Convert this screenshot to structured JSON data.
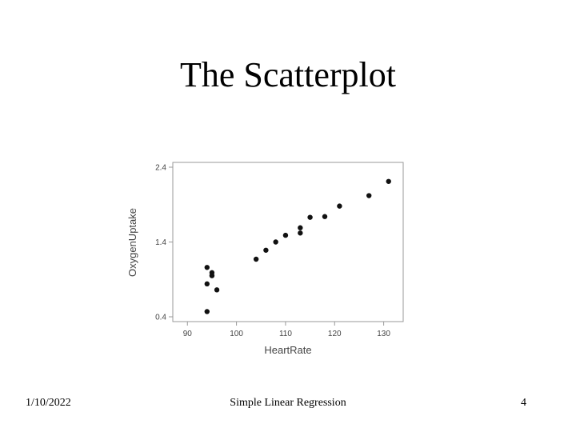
{
  "slide": {
    "title": "The Scatterplot",
    "footer_date": "1/10/2022",
    "footer_center": "Simple Linear Regression",
    "page_number": "4"
  },
  "chart_data": {
    "type": "scatter",
    "xlabel": "HeartRate",
    "ylabel": "OxygenUptake",
    "xlim": [
      88,
      133
    ],
    "ylim": [
      0.4,
      2.4
    ],
    "xticks": [
      90,
      100,
      110,
      120,
      130
    ],
    "yticks": [
      0.4,
      1.4,
      2.4
    ],
    "ytick_labels": [
      "0.4",
      "1.4",
      "2.4"
    ],
    "grid": false,
    "points": [
      {
        "x": 94,
        "y": 0.47
      },
      {
        "x": 94,
        "y": 0.84
      },
      {
        "x": 94,
        "y": 1.06
      },
      {
        "x": 95,
        "y": 0.95
      },
      {
        "x": 95,
        "y": 0.99
      },
      {
        "x": 96,
        "y": 0.76
      },
      {
        "x": 104,
        "y": 1.17
      },
      {
        "x": 106,
        "y": 1.29
      },
      {
        "x": 108,
        "y": 1.4
      },
      {
        "x": 110,
        "y": 1.49
      },
      {
        "x": 113,
        "y": 1.52
      },
      {
        "x": 113,
        "y": 1.59
      },
      {
        "x": 115,
        "y": 1.73
      },
      {
        "x": 118,
        "y": 1.74
      },
      {
        "x": 121,
        "y": 1.88
      },
      {
        "x": 127,
        "y": 2.02
      },
      {
        "x": 131,
        "y": 2.21
      }
    ]
  }
}
